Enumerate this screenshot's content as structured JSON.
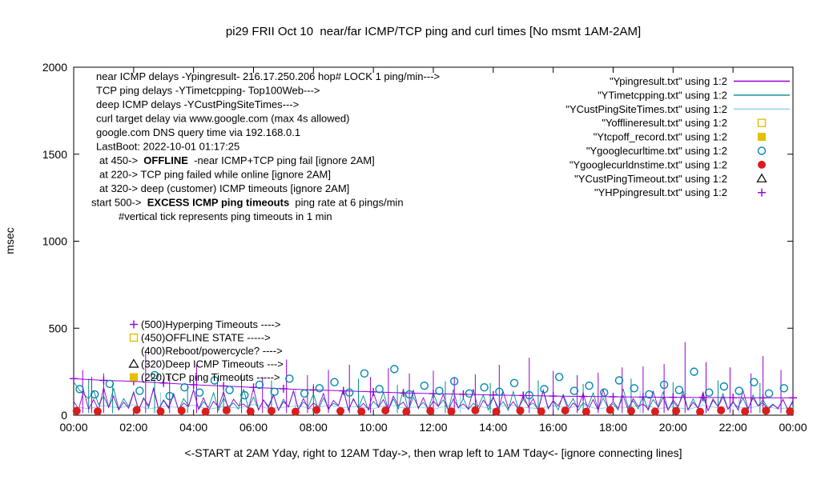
{
  "chart_data": {
    "type": "line",
    "title": "pi29 FRII Oct 10  near/far ICMP/TCP ping and curl times [No msmt 1AM-2AM]",
    "xlabel": "<-START at 2AM Yday, right to 12AM Tday->, then wrap left to 1AM Tday<- [ignore connecting lines]",
    "ylabel": "msec",
    "xlim": [
      0,
      24
    ],
    "ylim": [
      0,
      2000
    ],
    "grid": "off",
    "legend_position": "top-right",
    "xtick_labels": [
      "00:00",
      "02:00",
      "04:00",
      "06:00",
      "08:00",
      "10:00",
      "12:00",
      "14:00",
      "16:00",
      "18:00",
      "20:00",
      "22:00",
      "00:00"
    ],
    "ytick_values": [
      0,
      500,
      1000,
      1500,
      2000
    ],
    "series": [
      {
        "name": "Ypingresult",
        "legend": "\"Ypingresult.txt\" using 1:2",
        "style": "line",
        "color": "#9400d3",
        "x_step_h": 0.166667,
        "baseline": [
          80,
          35,
          140,
          35,
          90,
          30,
          160,
          45,
          110,
          30,
          75,
          40,
          130,
          28,
          95,
          55,
          150,
          32,
          85,
          40,
          120,
          30,
          70,
          50,
          145,
          35,
          100,
          28,
          80,
          45,
          135,
          30,
          92,
          55,
          65,
          38,
          155,
          30,
          88,
          42,
          115,
          28,
          78,
          50,
          140,
          32,
          96,
          36,
          70,
          48,
          125,
          30,
          85,
          55,
          150,
          28,
          95,
          40,
          68,
          35,
          130,
          45,
          90,
          30,
          110,
          55,
          75,
          28,
          145,
          38,
          100,
          32,
          82,
          50,
          120,
          28,
          92,
          45,
          65,
          36,
          150,
          30,
          86,
          52,
          105,
          28,
          135,
          40,
          78,
          34,
          115,
          48,
          95,
          26,
          140,
          36,
          84,
          54,
          108,
          30,
          70,
          45,
          125,
          32,
          90,
          28,
          148,
          42,
          80,
          38,
          112,
          30,
          96,
          50,
          66,
          34,
          138,
          44,
          102,
          28,
          88,
          52,
          118,
          30,
          74,
          40,
          132,
          26,
          94,
          48,
          106,
          34,
          80,
          30,
          142,
          38,
          98,
          54,
          72,
          32,
          60,
          40,
          90,
          30,
          85
        ],
        "spikes": [
          [
            0.3,
            260
          ],
          [
            0.6,
            220
          ],
          [
            1.0,
            240
          ],
          [
            2.4,
            370
          ],
          [
            3.2,
            230
          ],
          [
            4.1,
            290
          ],
          [
            4.8,
            210
          ],
          [
            5.6,
            240
          ],
          [
            6.3,
            220
          ],
          [
            7.1,
            320
          ],
          [
            7.8,
            230
          ],
          [
            8.5,
            260
          ],
          [
            9.2,
            290
          ],
          [
            9.9,
            220
          ],
          [
            10.5,
            270
          ],
          [
            11.2,
            240
          ],
          [
            12.0,
            255
          ],
          [
            12.7,
            220
          ],
          [
            13.4,
            235
          ],
          [
            14.2,
            290
          ],
          [
            15.2,
            330
          ],
          [
            16.0,
            255
          ],
          [
            16.8,
            230
          ],
          [
            17.5,
            245
          ],
          [
            18.3,
            275
          ],
          [
            19.0,
            280
          ],
          [
            19.7,
            295
          ],
          [
            20.4,
            420
          ],
          [
            21.1,
            305
          ],
          [
            21.9,
            275
          ],
          [
            22.6,
            240
          ],
          [
            23.0,
            340
          ],
          [
            23.6,
            260
          ]
        ]
      },
      {
        "name": "YTimetcpping",
        "legend": "\"YTimetcpping.txt\" using 1:2",
        "style": "line",
        "color": "#008b8b",
        "x_step_h": 0.166667,
        "baseline": [
          190,
          150,
          120,
          95,
          140,
          60,
          110,
          45,
          155,
          38,
          95,
          50,
          135,
          30,
          100,
          42,
          160,
          36,
          88,
          48,
          125,
          30,
          95,
          55,
          145,
          32,
          78,
          44,
          130,
          28,
          98,
          50,
          70,
          36,
          150,
          40,
          105,
          30,
          86,
          52,
          118,
          28,
          92,
          46,
          138,
          34,
          76,
          50,
          122,
          30,
          100,
          40,
          68,
          54,
          142,
          32,
          90,
          44,
          112,
          28,
          80,
          48,
          132,
          30,
          94,
          38,
          148,
          26,
          104,
          46,
          74,
          34,
          126,
          52,
          88,
          28,
          144,
          40,
          96,
          32,
          68,
          50,
          116,
          30,
          102,
          44,
          78,
          28,
          136,
          38,
          92,
          54,
          70,
          32,
          146,
          42,
          84,
          30,
          120,
          48,
          96,
          28,
          72,
          52,
          128,
          34,
          98,
          40,
          66,
          30,
          152,
          46,
          82,
          36,
          110,
          28,
          90,
          50,
          134,
          32,
          76,
          44,
          140,
          30,
          94,
          38,
          108,
          26,
          84,
          50,
          124,
          34,
          72,
          46,
          98,
          30,
          116,
          54,
          88,
          40,
          64,
          36,
          92,
          28,
          78
        ],
        "spikes": [
          [
            0.5,
            210
          ],
          [
            1.3,
            180
          ],
          [
            2.7,
            200
          ],
          [
            3.8,
            170
          ],
          [
            5.0,
            190
          ],
          [
            6.6,
            200
          ],
          [
            8.0,
            180
          ],
          [
            9.5,
            210
          ],
          [
            10.8,
            175
          ],
          [
            12.4,
            195
          ],
          [
            13.9,
            185
          ],
          [
            15.5,
            200
          ],
          [
            17.0,
            180
          ],
          [
            18.6,
            210
          ],
          [
            20.0,
            190
          ],
          [
            21.5,
            200
          ],
          [
            22.9,
            185
          ]
        ]
      },
      {
        "name": "YCustPingSiteTimes",
        "legend": "\"YCustPingSiteTimes.txt\" using 1:2",
        "style": "line",
        "color": "#87ceeb",
        "x_step_h": 0.5,
        "baseline": [
          48,
          38,
          56,
          42,
          60,
          36,
          52,
          44,
          58,
          34,
          50,
          40,
          62,
          38,
          46,
          54,
          36,
          58,
          44,
          50,
          38,
          60,
          42,
          48,
          34,
          56,
          40,
          52,
          36,
          62,
          46,
          38,
          54,
          42,
          58,
          36,
          50,
          44,
          60,
          38,
          48,
          34,
          56,
          42,
          52,
          40,
          58,
          36,
          46
        ],
        "spikes": [
          [
            2.9,
            130
          ],
          [
            7.4,
            150
          ],
          [
            12.9,
            125
          ],
          [
            18.9,
            140
          ],
          [
            22.2,
            130
          ]
        ]
      },
      {
        "name": "Yofflineresult",
        "legend": "\"Yofflineresult.txt\" using 1:2",
        "style": "open-square",
        "color": "#e3c000",
        "points": []
      },
      {
        "name": "Ytcpoff_record",
        "legend": "\"Ytcpoff_record.txt\" using 1:2",
        "style": "filled-square",
        "color": "#e3c000",
        "points": []
      },
      {
        "name": "Ygooglecurltime",
        "legend": "\"Ygooglecurltime.txt\" using 1:2",
        "style": "open-circle",
        "color": "#0087b0",
        "points": [
          [
            0.2,
            150
          ],
          [
            0.7,
            120
          ],
          [
            1.2,
            180
          ],
          [
            2.2,
            140
          ],
          [
            2.7,
            230
          ],
          [
            3.2,
            110
          ],
          [
            3.7,
            160
          ],
          [
            4.2,
            130
          ],
          [
            4.7,
            200
          ],
          [
            5.2,
            145
          ],
          [
            5.7,
            115
          ],
          [
            6.2,
            175
          ],
          [
            6.7,
            135
          ],
          [
            7.2,
            210
          ],
          [
            7.7,
            125
          ],
          [
            8.2,
            155
          ],
          [
            8.7,
            190
          ],
          [
            9.2,
            130
          ],
          [
            9.7,
            240
          ],
          [
            10.2,
            150
          ],
          [
            10.7,
            265
          ],
          [
            11.2,
            120
          ],
          [
            11.7,
            170
          ],
          [
            12.2,
            140
          ],
          [
            12.7,
            195
          ],
          [
            13.2,
            125
          ],
          [
            13.7,
            160
          ],
          [
            14.2,
            135
          ],
          [
            14.7,
            185
          ],
          [
            15.2,
            115
          ],
          [
            15.7,
            150
          ],
          [
            16.2,
            220
          ],
          [
            16.7,
            140
          ],
          [
            17.2,
            170
          ],
          [
            17.7,
            130
          ],
          [
            18.2,
            200
          ],
          [
            18.7,
            155
          ],
          [
            19.2,
            120
          ],
          [
            19.7,
            175
          ],
          [
            20.2,
            145
          ],
          [
            20.7,
            250
          ],
          [
            21.2,
            130
          ],
          [
            21.7,
            165
          ],
          [
            22.2,
            140
          ],
          [
            22.7,
            190
          ],
          [
            23.2,
            125
          ],
          [
            23.7,
            155
          ]
        ]
      },
      {
        "name": "Ygooglecurldnstime",
        "legend": "\"Ygooglecurldnstime.txt\" using 1:2",
        "style": "filled-circle",
        "color": "#dd1c1c",
        "points": [
          [
            0.1,
            25
          ],
          [
            0.8,
            22
          ],
          [
            2.1,
            30
          ],
          [
            2.9,
            22
          ],
          [
            3.6,
            26
          ],
          [
            4.4,
            20
          ],
          [
            5.1,
            28
          ],
          [
            5.9,
            22
          ],
          [
            6.6,
            25
          ],
          [
            7.4,
            20
          ],
          [
            8.1,
            30
          ],
          [
            8.9,
            24
          ],
          [
            9.6,
            21
          ],
          [
            10.4,
            27
          ],
          [
            11.1,
            20
          ],
          [
            11.9,
            25
          ],
          [
            12.6,
            22
          ],
          [
            13.4,
            28
          ],
          [
            14.1,
            20
          ],
          [
            14.9,
            26
          ],
          [
            15.6,
            22
          ],
          [
            16.4,
            27
          ],
          [
            17.1,
            20
          ],
          [
            17.9,
            30
          ],
          [
            18.6,
            24
          ],
          [
            19.4,
            21
          ],
          [
            20.1,
            25
          ],
          [
            20.9,
            20
          ],
          [
            21.6,
            28
          ],
          [
            22.4,
            22
          ],
          [
            23.1,
            26
          ],
          [
            23.9,
            22
          ]
        ]
      },
      {
        "name": "YCustPingTimeout",
        "legend": "\"YCustPingTimeout.txt\" using 1:2",
        "style": "open-triangle",
        "color": "#000000",
        "points": []
      },
      {
        "name": "YHPpingresult",
        "legend": "\"YHPpingresult.txt\" using 1:2",
        "style": "line+plus",
        "color": "#9400d3",
        "points": [
          [
            0,
            210
          ],
          [
            1,
            200
          ],
          [
            2,
            195
          ],
          [
            3,
            185
          ],
          [
            4,
            175
          ],
          [
            5,
            168
          ],
          [
            6,
            160
          ],
          [
            7,
            152
          ],
          [
            8,
            145
          ],
          [
            9,
            140
          ],
          [
            10,
            134
          ],
          [
            11,
            128
          ],
          [
            12,
            124
          ],
          [
            13,
            120
          ],
          [
            14,
            116
          ],
          [
            15,
            113
          ],
          [
            16,
            110
          ],
          [
            17,
            108
          ],
          [
            18,
            106
          ],
          [
            19,
            104
          ],
          [
            20,
            103
          ],
          [
            21,
            102
          ],
          [
            22,
            101
          ],
          [
            23,
            100
          ],
          [
            24,
            100
          ]
        ]
      }
    ]
  },
  "annotations": {
    "info_lines": [
      {
        "indent": 120,
        "segments": [
          {
            "text": "near ICMP delays -Ypingresult- 216.17.250.206 hop# LOCK 1 ping/min--->"
          }
        ]
      },
      {
        "indent": 120,
        "segments": [
          {
            "text": "TCP ping delays -YTimetcpping- Top100Web--->"
          }
        ]
      },
      {
        "indent": 120,
        "segments": [
          {
            "text": "deep ICMP delays -YCustPingSiteTimes--->"
          }
        ]
      },
      {
        "indent": 120,
        "segments": [
          {
            "text": "curl target delay via www.google.com (max 4s allowed)"
          }
        ]
      },
      {
        "indent": 120,
        "segments": [
          {
            "text": "google.com DNS query time via 192.168.0.1"
          }
        ]
      },
      {
        "indent": 120,
        "segments": [
          {
            "text": "LastBoot: 2022-10-01 01:17:25"
          }
        ]
      },
      {
        "indent": 124,
        "segments": [
          {
            "text": "at 450->  "
          },
          {
            "text": "OFFLINE",
            "bold": true
          },
          {
            "text": "  -near ICMP+TCP ping fail [ignore 2AM]"
          }
        ]
      },
      {
        "indent": 124,
        "segments": [
          {
            "text": "at 220-> TCP ping failed while online [ignore 2AM]"
          }
        ]
      },
      {
        "indent": 124,
        "segments": [
          {
            "text": "at 320-> deep (customer) ICMP timeouts [ignore 2AM]"
          }
        ]
      },
      {
        "indent": 114,
        "segments": [
          {
            "text": "start 500->  "
          },
          {
            "text": "EXCESS ICMP ping timeouts",
            "bold": true
          },
          {
            "text": "  ping rate at 6 pings/min"
          }
        ]
      },
      {
        "indent": 148,
        "segments": [
          {
            "text": "#vertical tick represents ping timeouts in 1 min"
          }
        ]
      }
    ],
    "level_labels": [
      {
        "text": "(500)Hyperping Timeouts ---->",
        "marker": "plus",
        "color": "#9400d3"
      },
      {
        "text": "(450)OFFLINE STATE ----->",
        "marker": "open-square",
        "color": "#e3c000"
      },
      {
        "text": "(400)Reboot/powercycle? ---->",
        "marker": "none",
        "color": "#000000"
      },
      {
        "text": "(320)Deep ICMP Timeouts --->",
        "marker": "open-triangle",
        "color": "#000000"
      },
      {
        "text": "(220)TCP ping Timeouts ----->",
        "marker": "filled-square",
        "color": "#e3c000"
      }
    ]
  },
  "colors": {
    "purple": "#9400d3",
    "teal": "#008b8b",
    "skyblue": "#87ceeb",
    "yellow": "#e3c000",
    "curl_blue": "#0087b0",
    "red": "#dd1c1c",
    "black": "#000000"
  }
}
